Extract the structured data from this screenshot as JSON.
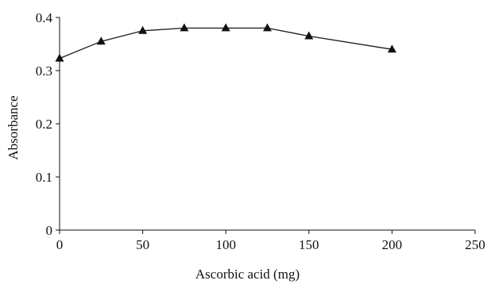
{
  "chart_data": {
    "type": "line",
    "title": "",
    "xlabel": "Ascorbic acid (mg)",
    "ylabel": "Absorbance",
    "xlim": [
      0,
      250
    ],
    "ylim": [
      0,
      0.4
    ],
    "x_ticks": [
      "0",
      "50",
      "100",
      "150",
      "200",
      "250"
    ],
    "y_ticks": [
      "0",
      "0.1",
      "0.2",
      "0.3",
      "0.4"
    ],
    "grid": false,
    "legend": "none",
    "marker": "triangle",
    "colors": {
      "line": "#1a1a1a",
      "marker": "#111111",
      "axis": "#111111"
    },
    "series": [
      {
        "x": [
          0,
          25,
          50,
          75,
          100,
          125,
          150,
          200
        ],
        "y": [
          0.323,
          0.355,
          0.375,
          0.38,
          0.38,
          0.38,
          0.365,
          0.34
        ]
      }
    ]
  }
}
